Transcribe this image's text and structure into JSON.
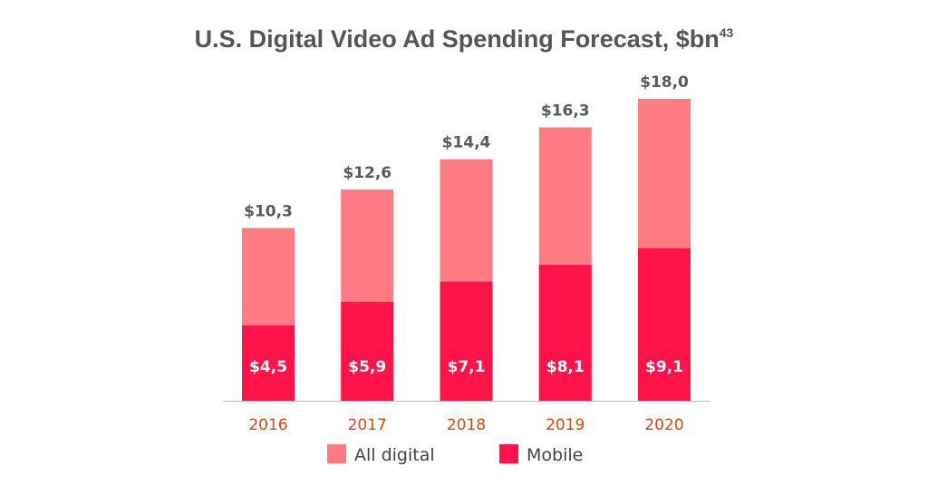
{
  "title": {
    "text": "U.S. Digital Video Ad Spending Forecast, $bn",
    "footnote": "43"
  },
  "colors": {
    "all_digital": "#ff7b84",
    "mobile": "#ff1349",
    "axis": "#bbbbbb",
    "tick_text": "#d94a12",
    "total_text": "#5a5a5a"
  },
  "chart_data": {
    "type": "bar",
    "stacked": false,
    "overlapping": true,
    "title": "U.S. Digital Video Ad Spending Forecast, $bn",
    "categories": [
      "2016",
      "2017",
      "2018",
      "2019",
      "2020"
    ],
    "series": [
      {
        "name": "All digital",
        "values": [
          10.3,
          12.6,
          14.4,
          16.3,
          18.0
        ],
        "labels": [
          "$10,3",
          "$12,6",
          "$14,4",
          "$16,3",
          "$18,0"
        ],
        "color": "#ff7b84"
      },
      {
        "name": "Mobile",
        "values": [
          4.5,
          5.9,
          7.1,
          8.1,
          9.1
        ],
        "labels": [
          "$4,5",
          "$5,9",
          "$7,1",
          "$8,1",
          "$9,1"
        ],
        "color": "#ff1349"
      }
    ],
    "xlabel": "",
    "ylabel": "",
    "grid": false,
    "legend": "bottom"
  }
}
